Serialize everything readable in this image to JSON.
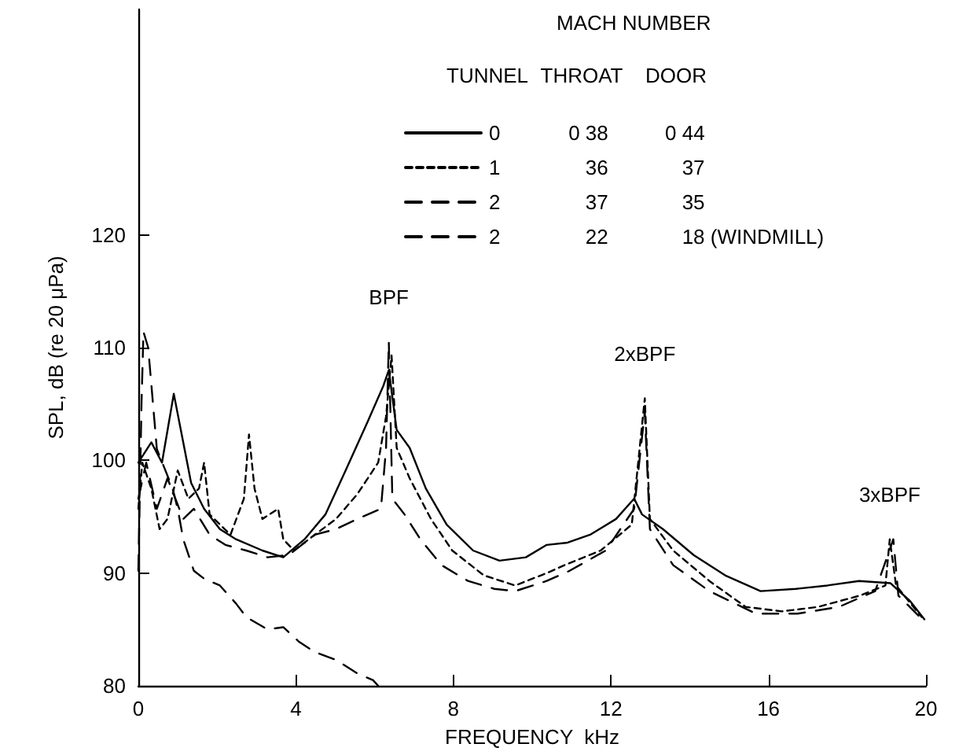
{
  "chart_data": {
    "type": "line",
    "xlabel": "FREQUENCY  kHz",
    "ylabel": "SPL, dB (re 20 μPa)",
    "legend_title": "MACH NUMBER",
    "annotations": [
      "TUNNEL",
      "THROAT",
      "DOOR",
      {
        "text": "BPF",
        "x": 6.36,
        "y": 110.5
      },
      {
        "text": "2xBPF",
        "x": 12.86,
        "y": 105.5
      },
      {
        "text": "3xBPF",
        "x": 19.08,
        "y": 93
      }
    ],
    "xlim": [
      0,
      20
    ],
    "xticks": [
      0,
      4,
      8,
      12,
      16,
      20
    ],
    "ylim": [
      80,
      140
    ],
    "yticks": [
      80,
      90,
      100,
      110,
      120
    ],
    "grid": false,
    "legend": "top right",
    "marker": "none",
    "series": [
      {
        "name": "0            0 38          0 44",
        "color": "#000000",
        "line_style": "solid",
        "x": [
          0,
          0.33,
          0.6,
          0.9,
          1.14,
          1.34,
          1.67,
          2.07,
          2.48,
          3.15,
          3.68,
          4.22,
          4.75,
          5.29,
          5.82,
          6.22,
          6.36,
          6.56,
          6.89,
          7.3,
          7.83,
          8.5,
          9.17,
          9.84,
          10.37,
          10.9,
          11.47,
          12.13,
          12.59,
          12.79,
          13.32,
          14.1,
          14.9,
          15.8,
          16.7,
          17.5,
          18.3,
          19.1,
          19.6,
          19.96
        ],
        "values": [
          99.8,
          101.6,
          99.8,
          105.9,
          101.6,
          98,
          95.7,
          93.9,
          93,
          92,
          91.4,
          93,
          95.2,
          99.3,
          103.4,
          106.6,
          108,
          102.7,
          101.1,
          97.5,
          94.3,
          92,
          91.1,
          91.4,
          92.5,
          92.7,
          93.4,
          94.8,
          96.6,
          95.2,
          93.9,
          91.6,
          89.8,
          88.4,
          88.6,
          88.9,
          89.3,
          89.1,
          87.5,
          85.9
        ]
      },
      {
        "name": "1               36             37",
        "color": "#000000",
        "line_style": "dotted",
        "x": [
          0,
          0.1,
          0.33,
          0.54,
          0.74,
          1.0,
          1.27,
          1.54,
          1.67,
          1.81,
          2.34,
          2.68,
          2.81,
          2.95,
          3.15,
          3.55,
          3.68,
          3.95,
          4.48,
          5.02,
          5.56,
          6.09,
          6.29,
          6.43,
          6.56,
          6.89,
          7.43,
          7.97,
          8.77,
          9.57,
          10.37,
          10.82,
          11.74,
          12.53,
          12.86,
          12.99,
          13.58,
          14.5,
          15.42,
          16.34,
          17.26,
          18.32,
          18.97,
          19.08,
          19.24,
          19.89
        ],
        "values": [
          95.7,
          99.8,
          97.5,
          93.9,
          94.8,
          99.1,
          96.6,
          97.5,
          99.8,
          95.2,
          93.4,
          96.6,
          102.3,
          97.5,
          94.8,
          95.7,
          93,
          92,
          93.4,
          94.8,
          97,
          99.8,
          103.9,
          109.3,
          101.1,
          98.4,
          94.8,
          92,
          89.8,
          88.9,
          90,
          90.7,
          92,
          94.3,
          105.5,
          94.8,
          92,
          89.3,
          87,
          86.6,
          87,
          88,
          88.9,
          93,
          88.9,
          86.1
        ]
      },
      {
        "name": "2               37             35",
        "color": "#000000",
        "line_style": "dashed",
        "x": [
          0,
          0.2,
          0.47,
          0.74,
          1.14,
          1.41,
          1.81,
          2.21,
          2.74,
          3.28,
          3.82,
          4.48,
          5.02,
          5.56,
          6.16,
          6.29,
          6.36,
          6.45,
          6.76,
          7.16,
          7.7,
          8.37,
          9.04,
          9.57,
          10.37,
          10.95,
          11.87,
          12.59,
          12.86,
          12.99,
          13.58,
          14.5,
          15.68,
          16.74,
          17.79,
          18.71,
          19.17,
          19.3,
          19.96
        ],
        "values": [
          96.6,
          99.8,
          95.7,
          98.4,
          94.8,
          95.7,
          93.4,
          92.5,
          92,
          91.4,
          91.6,
          93.4,
          93.9,
          94.8,
          95.7,
          101.1,
          110.5,
          96.6,
          95.2,
          93,
          90.7,
          89.3,
          88.6,
          88.4,
          89.3,
          90.2,
          92,
          95.7,
          104.3,
          93.9,
          90.7,
          88.4,
          86.4,
          86.4,
          87,
          88.4,
          93,
          88,
          85.7
        ]
      },
      {
        "name": "2               22             18 (WINDMILL)",
        "color": "#000000",
        "line_style": "dashed",
        "x": [
          0,
          0.08,
          0.13,
          0.25,
          0.47,
          0.87,
          1.0,
          1.14,
          1.41,
          1.67,
          2.07,
          2.48,
          2.74,
          3.28,
          3.68,
          4.08,
          4.48,
          5.02,
          5.56,
          5.96,
          6.09
        ],
        "values": [
          90.2,
          105,
          111.4,
          110,
          101,
          97.5,
          95.7,
          93,
          90.2,
          89.5,
          88.9,
          87.3,
          86.1,
          85,
          85.2,
          83.9,
          83,
          82.3,
          81.1,
          80.5,
          80
        ]
      }
    ]
  }
}
